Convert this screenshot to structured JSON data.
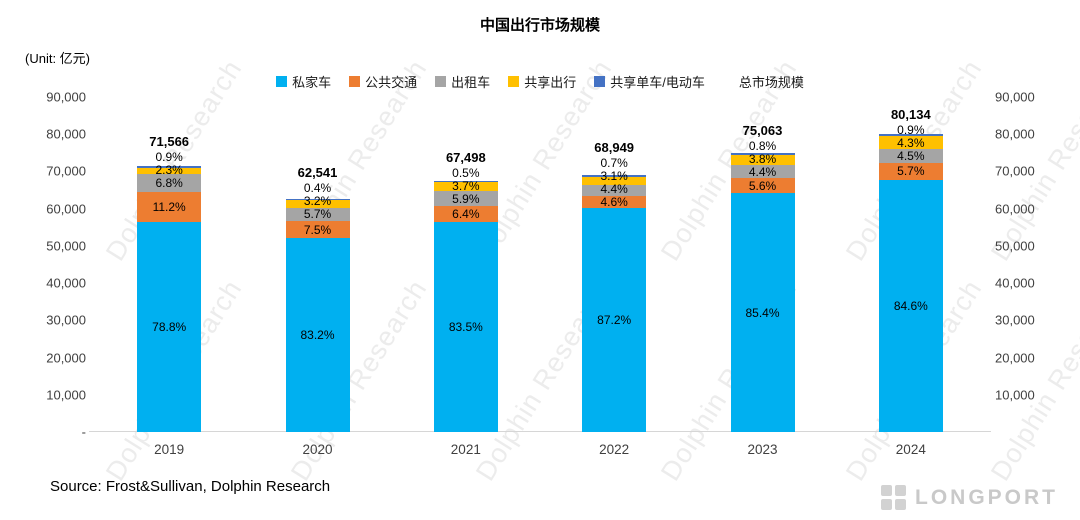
{
  "title": "中国出行市场规模",
  "unit_label": "(Unit: 亿元)",
  "source": "Source: Frost&Sullivan, Dolphin Research",
  "watermark": "Dolphin Research",
  "brand": "LONGPORT",
  "chart_data": {
    "type": "bar",
    "stacked": true,
    "title": "中国出行市场规模",
    "unit": "亿元",
    "categories": [
      "2019",
      "2020",
      "2021",
      "2022",
      "2023",
      "2024"
    ],
    "totals": [
      71566,
      62541,
      67498,
      68949,
      75063,
      80134
    ],
    "total_labels": [
      "71,566",
      "62,541",
      "67,498",
      "68,949",
      "75,063",
      "80,134"
    ],
    "total_legend": "总市场规模",
    "series": [
      {
        "name": "私家车",
        "color": "#00B0F0",
        "pct": [
          78.8,
          83.2,
          83.5,
          87.2,
          85.4,
          84.6
        ]
      },
      {
        "name": "公共交通",
        "color": "#ED7D31",
        "pct": [
          11.2,
          7.5,
          6.4,
          4.6,
          5.6,
          5.7
        ]
      },
      {
        "name": "出租车",
        "color": "#A5A5A5",
        "pct": [
          6.8,
          5.7,
          5.9,
          4.4,
          4.4,
          4.5
        ]
      },
      {
        "name": "共享出行",
        "color": "#FFC000",
        "pct": [
          2.3,
          3.2,
          3.7,
          3.1,
          3.8,
          4.3
        ]
      },
      {
        "name": "共享单车/电动车",
        "color": "#4472C4",
        "pct": [
          0.9,
          0.4,
          0.5,
          0.7,
          0.8,
          0.9
        ]
      }
    ],
    "ylim": [
      0,
      90000
    ],
    "yticks": [
      "90,000",
      "80,000",
      "70,000",
      "60,000",
      "50,000",
      "40,000",
      "30,000",
      "20,000",
      "10,000",
      "-"
    ],
    "grid": false,
    "legend_position": "top"
  }
}
